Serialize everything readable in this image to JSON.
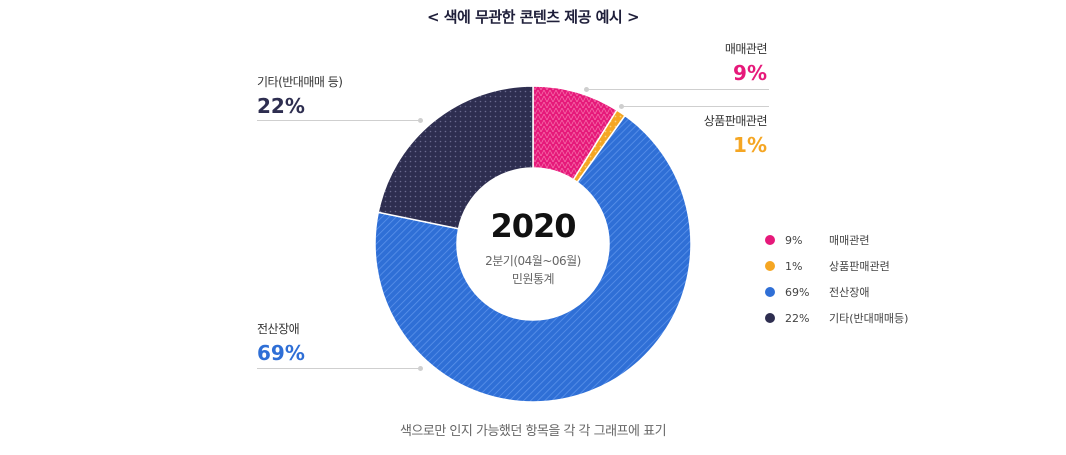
{
  "title": "< 색에 무관한 콘텐츠 제공 예시 >",
  "center": {
    "year": "2020",
    "line1": "2분기(04월~06월)",
    "line2": "민원통계"
  },
  "caption": "색으로만 인지 가능했던 항목을 각 각 그래프에 표기",
  "callouts": {
    "maemae": {
      "name": "매매관련",
      "pct": "9%"
    },
    "sangpum": {
      "name": "상품판매관련",
      "pct": "1%"
    },
    "gita": {
      "name": "기타(반대매매 등)",
      "pct": "22%"
    },
    "jeonsan": {
      "name": "전산장애",
      "pct": "69%"
    }
  },
  "legend": [
    {
      "value": "9%",
      "label": "매매관련",
      "color": "#e6197a"
    },
    {
      "value": "1%",
      "label": "상품판매관련",
      "color": "#f5a623"
    },
    {
      "value": "69%",
      "label": "전산장애",
      "color": "#2f6fd6"
    },
    {
      "value": "22%",
      "label": "기타(반대매매등)",
      "color": "#2e2e50"
    }
  ],
  "chart_data": {
    "type": "pie",
    "title": "< 색에 무관한 콘텐츠 제공 예시 >",
    "categories": [
      "매매관련",
      "상품판매관련",
      "전산장애",
      "기타(반대매매 등)"
    ],
    "values": [
      9,
      1,
      69,
      22
    ],
    "colors": [
      "#e6197a",
      "#f5a623",
      "#2f6fd6",
      "#2e2e50"
    ],
    "donut": true,
    "center_text": "2020",
    "legend_position": "right"
  }
}
